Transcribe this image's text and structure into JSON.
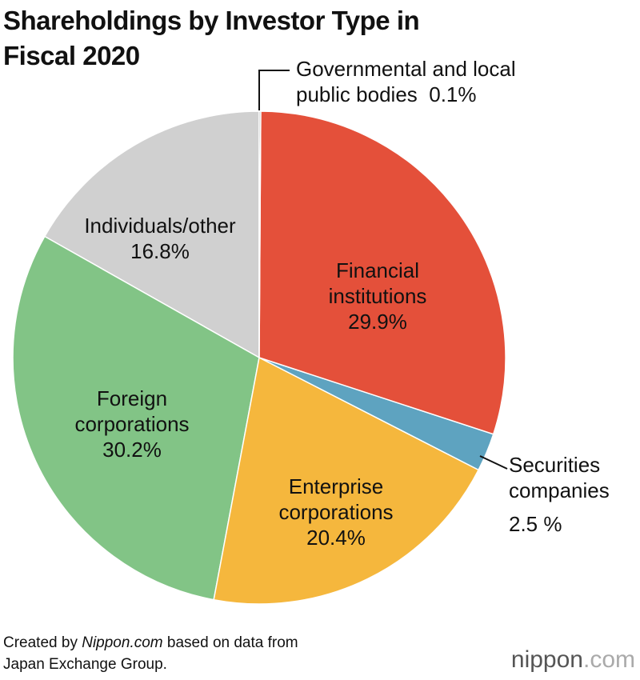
{
  "title": "Shareholdings by Investor Type in\nFiscal 2020",
  "chart_data": {
    "type": "pie",
    "categories": [
      "Governmental and local\npublic bodies",
      "Financial\ninstitutions",
      "Securities\ncompanies",
      "Enterprise\ncorporations",
      "Foreign\ncorporations",
      "Individuals/other"
    ],
    "values": [
      0.1,
      29.9,
      2.5,
      20.4,
      30.2,
      16.8
    ],
    "value_labels": [
      "0.1%",
      "29.9%",
      "2.5 %",
      "20.4%",
      "30.2%",
      "16.8%"
    ],
    "colors": [
      "#8a8a8a",
      "#e4503a",
      "#5ea3c0",
      "#f5b73d",
      "#82c486",
      "#d0d0d0"
    ]
  },
  "source": [
    "Created by",
    "Nippon.com",
    "based on data from\nJapan Exchange Group."
  ],
  "logo": [
    "nippon",
    ".com"
  ]
}
